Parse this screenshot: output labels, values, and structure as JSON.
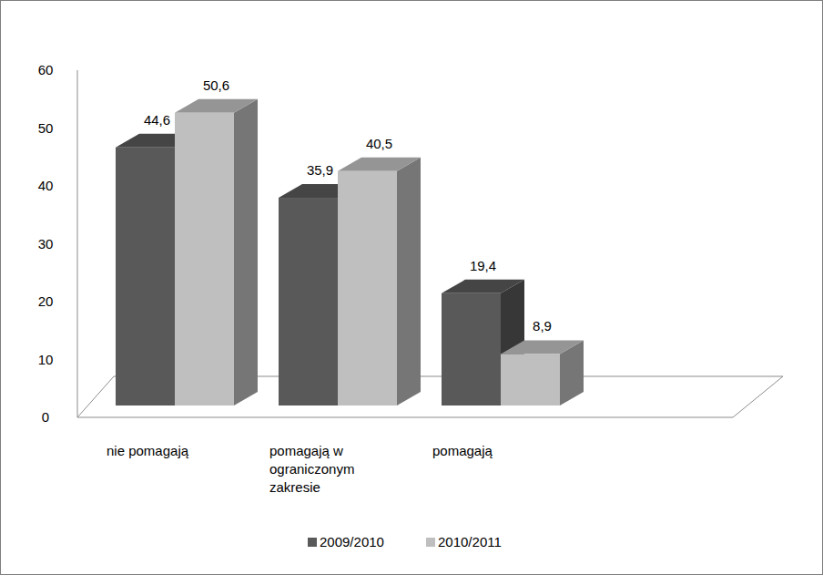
{
  "chart_data": {
    "type": "bar",
    "categories": [
      "nie pomagają",
      "pomagają w ograniczonym zakresie",
      "pomagają"
    ],
    "series": [
      {
        "name": "2009/2010",
        "color": "#595959",
        "values": [
          44.6,
          35.9,
          19.4
        ],
        "value_labels": [
          "44,6",
          "35,9",
          "19,4"
        ]
      },
      {
        "name": "2010/2011",
        "color": "#bfbfbf",
        "values": [
          50.6,
          40.5,
          8.9
        ],
        "value_labels": [
          "50,6",
          "40,5",
          "8,9"
        ]
      }
    ],
    "ylim": [
      0,
      60
    ],
    "yticks": [
      0,
      10,
      20,
      30,
      40,
      50,
      60
    ],
    "grid": false,
    "data_labels": true,
    "legend": "bottom"
  }
}
